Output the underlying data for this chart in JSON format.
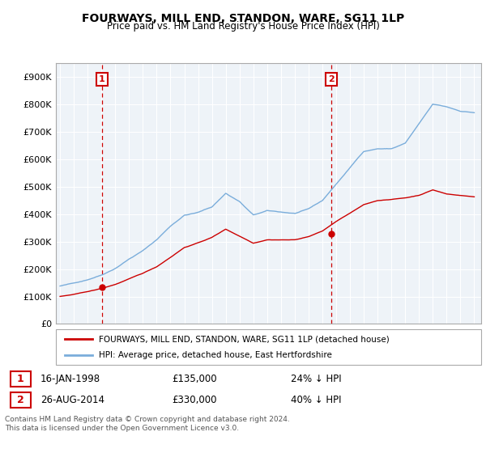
{
  "title": "FOURWAYS, MILL END, STANDON, WARE, SG11 1LP",
  "subtitle": "Price paid vs. HM Land Registry's House Price Index (HPI)",
  "legend_line1": "FOURWAYS, MILL END, STANDON, WARE, SG11 1LP (detached house)",
  "legend_line2": "HPI: Average price, detached house, East Hertfordshire",
  "footnote1": "Contains HM Land Registry data © Crown copyright and database right 2024.",
  "footnote2": "This data is licensed under the Open Government Licence v3.0.",
  "marker1_date": "16-JAN-1998",
  "marker1_price": "£135,000",
  "marker1_hpi": "24% ↓ HPI",
  "marker2_date": "26-AUG-2014",
  "marker2_price": "£330,000",
  "marker2_hpi": "40% ↓ HPI",
  "ylim": [
    0,
    950000
  ],
  "yticks": [
    0,
    100000,
    200000,
    300000,
    400000,
    500000,
    600000,
    700000,
    800000,
    900000
  ],
  "ytick_labels": [
    "£0",
    "£100K",
    "£200K",
    "£300K",
    "£400K",
    "£500K",
    "£600K",
    "£700K",
    "£800K",
    "£900K"
  ],
  "line_color_red": "#cc0000",
  "line_color_blue": "#7aaddb",
  "marker_box_color": "#cc0000",
  "background_color": "#ffffff",
  "chart_bg_color": "#eef3f8",
  "grid_color": "#ffffff",
  "marker1_x": 1998.04,
  "marker1_y": 135000,
  "marker2_x": 2014.65,
  "marker2_y": 330000,
  "xlim_left": 1994.7,
  "xlim_right": 2025.5
}
